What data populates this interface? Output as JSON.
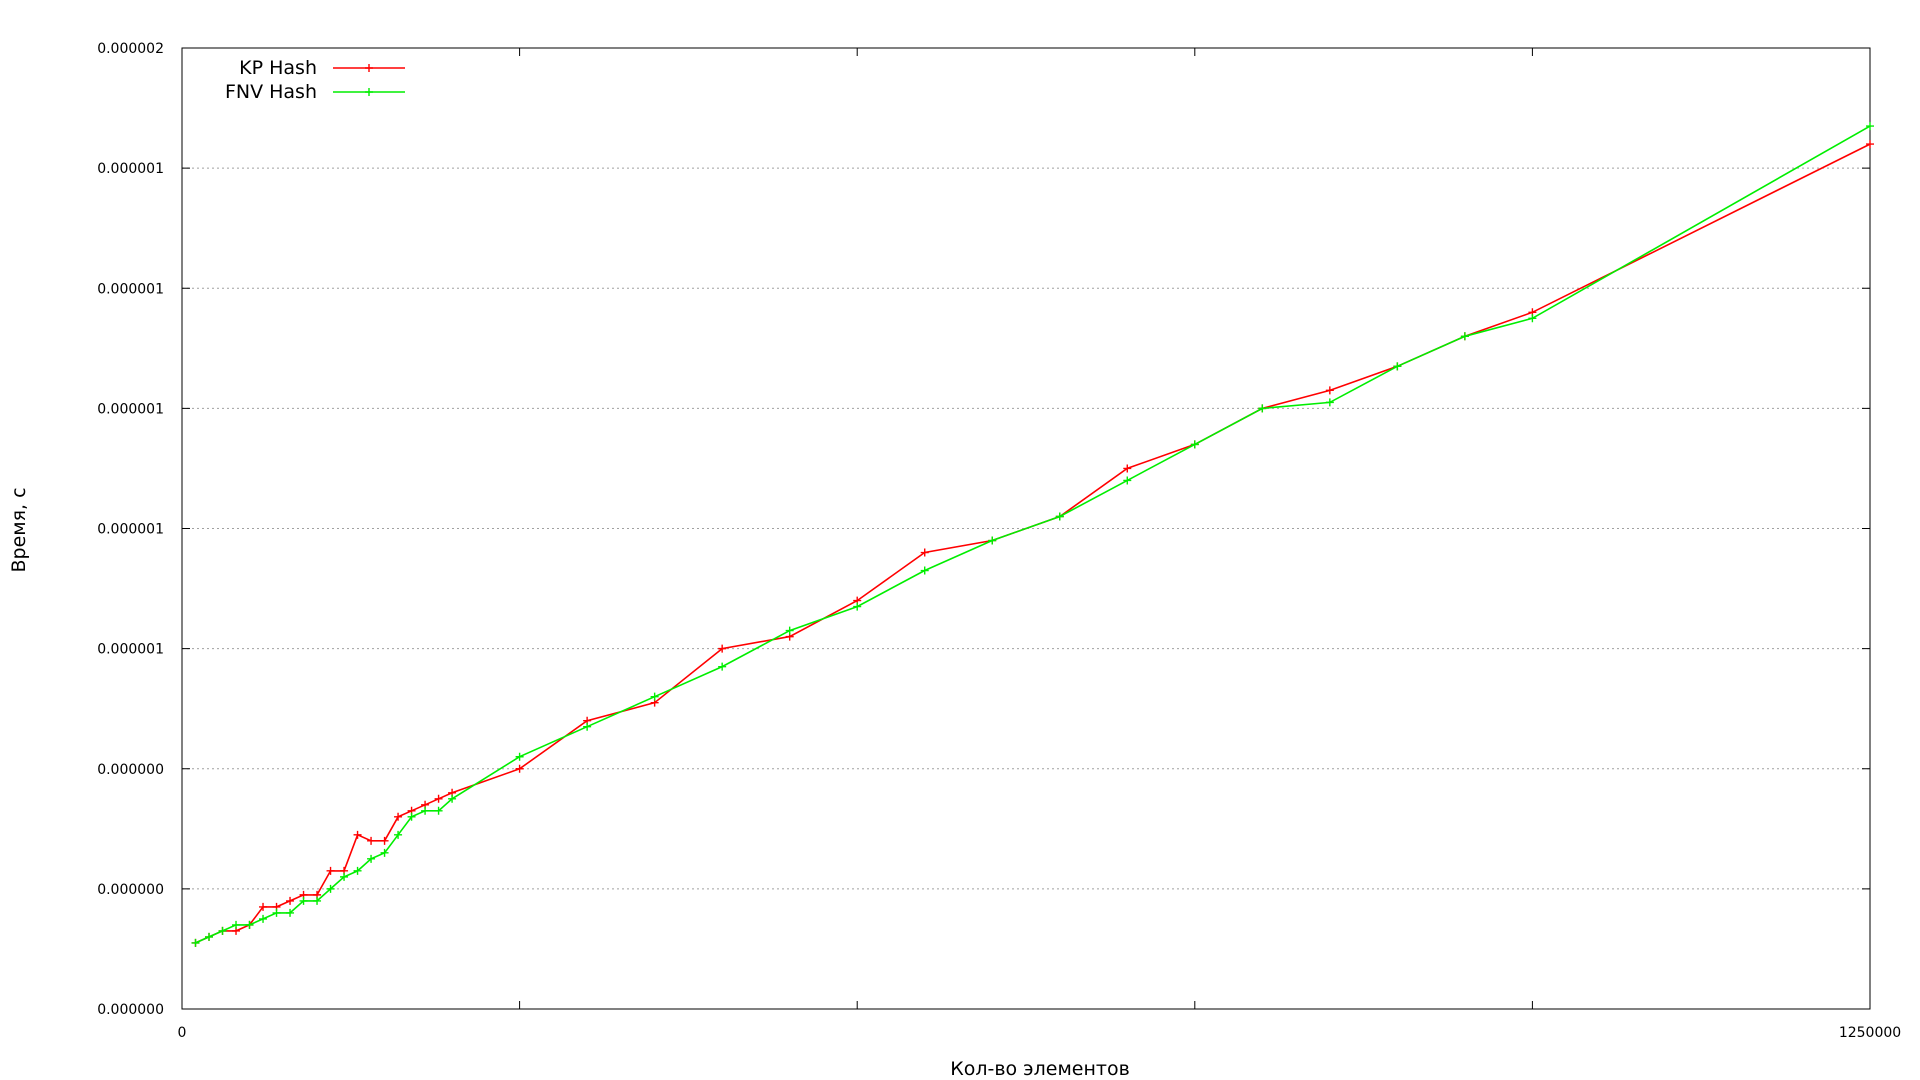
{
  "chart_data": {
    "type": "line",
    "title": "",
    "xlabel": "Кол-во элементов",
    "ylabel": "Время, с",
    "xlim": [
      0,
      1250000
    ],
    "ylim": [
      0,
      8
    ],
    "grid": {
      "horizontal": true,
      "vertical": false
    },
    "legend": {
      "placement": "top-left"
    },
    "x_ticks": [
      {
        "value": 0,
        "label": "0"
      },
      {
        "value": 250000,
        "label": ""
      },
      {
        "value": 500000,
        "label": ""
      },
      {
        "value": 750000,
        "label": ""
      },
      {
        "value": 1000000,
        "label": ""
      },
      {
        "value": 1250000,
        "label": "1250000"
      }
    ],
    "y_ticks": [
      {
        "value": 0,
        "label": "0.000000"
      },
      {
        "value": 1,
        "label": "0.000000"
      },
      {
        "value": 2,
        "label": "0.000000"
      },
      {
        "value": 3,
        "label": "0.000001"
      },
      {
        "value": 4,
        "label": "0.000001"
      },
      {
        "value": 5,
        "label": "0.000001"
      },
      {
        "value": 6,
        "label": "0.000001"
      },
      {
        "value": 7,
        "label": "0.000001"
      },
      {
        "value": 8,
        "label": "0.000002"
      }
    ],
    "series": [
      {
        "name": "KP Hash",
        "color": "#ff0000",
        "x": [
          10000,
          20000,
          30000,
          40000,
          50000,
          60000,
          70000,
          80000,
          90000,
          100000,
          110000,
          120000,
          130000,
          140000,
          150000,
          160000,
          170000,
          180000,
          190000,
          200000,
          250000,
          300000,
          350000,
          400000,
          450000,
          500000,
          550000,
          600000,
          650000,
          700000,
          750000,
          800000,
          850000,
          900000,
          950000,
          1000000,
          1250000
        ],
        "values": [
          0.55,
          0.6,
          0.65,
          0.65,
          0.7,
          0.85,
          0.85,
          0.9,
          0.95,
          0.95,
          1.15,
          1.15,
          1.45,
          1.4,
          1.4,
          1.6,
          1.65,
          1.7,
          1.75,
          1.8,
          2.0,
          2.4,
          2.55,
          3.0,
          3.1,
          3.4,
          3.8,
          3.9,
          4.1,
          4.5,
          4.7,
          5.0,
          5.15,
          5.35,
          5.6,
          5.8,
          7.2
        ]
      },
      {
        "name": "FNV Hash",
        "color": "#00ee00",
        "x": [
          10000,
          20000,
          30000,
          40000,
          50000,
          60000,
          70000,
          80000,
          90000,
          100000,
          110000,
          120000,
          130000,
          140000,
          150000,
          160000,
          170000,
          180000,
          190000,
          200000,
          250000,
          300000,
          350000,
          400000,
          450000,
          500000,
          550000,
          600000,
          650000,
          700000,
          750000,
          800000,
          850000,
          900000,
          950000,
          1000000,
          1250000
        ],
        "values": [
          0.55,
          0.6,
          0.65,
          0.7,
          0.7,
          0.75,
          0.8,
          0.8,
          0.9,
          0.9,
          1.0,
          1.1,
          1.15,
          1.25,
          1.3,
          1.45,
          1.6,
          1.65,
          1.65,
          1.75,
          2.1,
          2.35,
          2.6,
          2.85,
          3.15,
          3.35,
          3.65,
          3.9,
          4.1,
          4.4,
          4.7,
          5.0,
          5.05,
          5.35,
          5.6,
          5.75,
          7.35
        ]
      }
    ]
  }
}
